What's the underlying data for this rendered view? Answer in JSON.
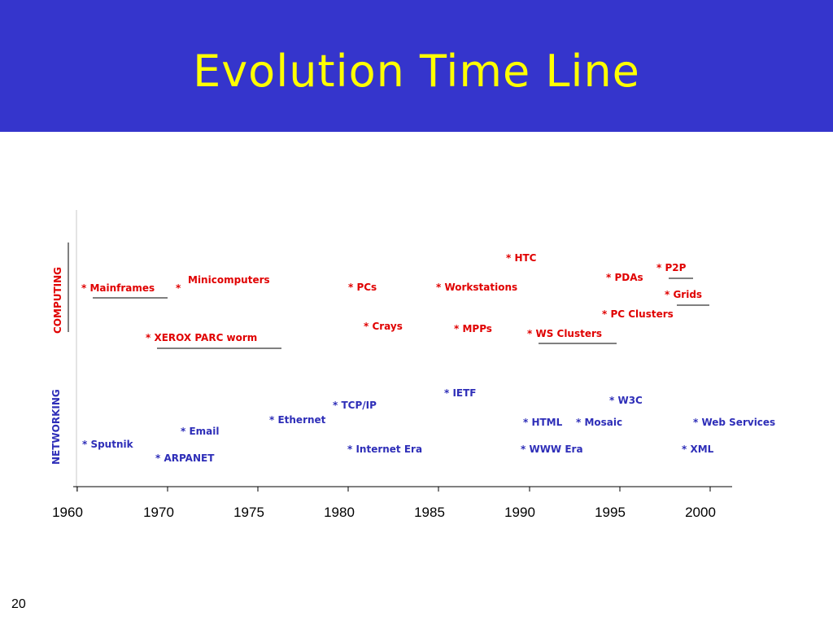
{
  "slide": {
    "title": "Evolution Time Line",
    "page_number": "20"
  },
  "colors": {
    "title_bar": "#3535cc",
    "title_text": "#ffff00",
    "computing": "#e00000",
    "networking": "#2e2eb8"
  },
  "rows": {
    "computing_label": "COMPUTING",
    "networking_label": "NETWORKING"
  },
  "axis": {
    "years": [
      "1960",
      "1970",
      "1975",
      "1980",
      "1985",
      "1990",
      "1995",
      "2000"
    ]
  },
  "computing_events": [
    {
      "text": "* HTC",
      "year": 1989
    },
    {
      "text": "* P2P",
      "year": 1997
    },
    {
      "text": "* PDAs",
      "year": 1994
    },
    {
      "text": "* Grids",
      "year": 1998
    },
    {
      "text": "Minicomputers",
      "year": 1971
    },
    {
      "text": "* Mainframes",
      "year": 1960
    },
    {
      "text": "*",
      "year": 1970
    },
    {
      "text": "* PCs",
      "year": 1980
    },
    {
      "text": "* Workstations",
      "year": 1985
    },
    {
      "text": "* PC Clusters",
      "year": 1994
    },
    {
      "text": "* Crays",
      "year": 1981
    },
    {
      "text": "* MPPs",
      "year": 1986
    },
    {
      "text": "* WS Clusters",
      "year": 1990
    },
    {
      "text": "* XEROX PARC worm",
      "year": 1969
    }
  ],
  "networking_events": [
    {
      "text": "* IETF",
      "year": 1985
    },
    {
      "text": "* W3C",
      "year": 1994
    },
    {
      "text": "* TCP/IP",
      "year": 1979
    },
    {
      "text": "* Ethernet",
      "year": 1976
    },
    {
      "text": "* HTML",
      "year": 1990
    },
    {
      "text": "* Mosaic",
      "year": 1993
    },
    {
      "text": "* Web Services",
      "year": 1998
    },
    {
      "text": "* Email",
      "year": 1971
    },
    {
      "text": "* Sputnik",
      "year": 1960
    },
    {
      "text": "* Internet Era",
      "year": 1980
    },
    {
      "text": "* WWW Era",
      "year": 1990
    },
    {
      "text": "* XML",
      "year": 1998
    },
    {
      "text": "* ARPANET",
      "year": 1969
    }
  ]
}
